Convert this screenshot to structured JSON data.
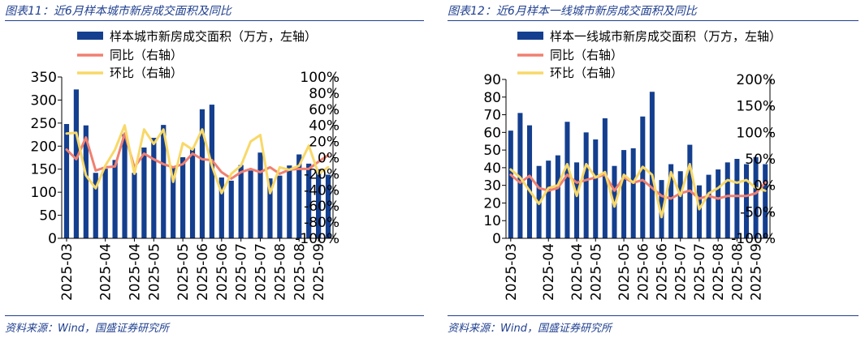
{
  "charts": [
    {
      "title": "图表11：近6月样本城市新房成交面积及同比",
      "source": "资料来源：Wind，国盛证券研究所",
      "chart_data": {
        "type": "bar+line",
        "categories": [
          "2025-03",
          "2025-03",
          "2025-03",
          "2025-03",
          "2025-04",
          "2025-04",
          "2025-04",
          "2025-04",
          "2025-05",
          "2025-05",
          "2025-05",
          "2025-05",
          "2025-05",
          "2025-06",
          "2025-06",
          "2025-06",
          "2025-06",
          "2025-07",
          "2025-07",
          "2025-07",
          "2025-07",
          "2025-08",
          "2025-08",
          "2025-08",
          "2025-08",
          "2025-09",
          "2025-09",
          "2025-09"
        ],
        "x_tick_labels": [
          "2025-03",
          "2025-04",
          "2025-04",
          "2025-05",
          "2025-05",
          "2025-06",
          "2025-06",
          "2025-07",
          "2025-07",
          "2025-08",
          "2025-08",
          "2025-09"
        ],
        "x_tick_index": [
          0,
          4,
          7,
          9,
          12,
          14,
          16,
          18,
          20,
          22,
          24,
          26
        ],
        "series": [
          {
            "name": "样本城市新房成交面积（万方，左轴）",
            "kind": "bar",
            "axis": "left",
            "values": [
              248,
              323,
              245,
              142,
              151,
              170,
              226,
              142,
              197,
              218,
              246,
              154,
              176,
              196,
              280,
              290,
              132,
              125,
              159,
              147,
              186,
              130,
              136,
              158,
              182,
              162,
              150,
              138
            ]
          },
          {
            "name": "同比（右轴）",
            "kind": "line",
            "axis": "right",
            "values": [
              10,
              -2,
              25,
              -16,
              -12,
              -11,
              30,
              -12,
              5,
              -2,
              -8,
              -12,
              -8,
              5,
              -2,
              -3,
              -18,
              -26,
              -18,
              -14,
              -18,
              -12,
              -20,
              -15,
              -14,
              -14,
              -5,
              3
            ]
          },
          {
            "name": "环比（右轴）",
            "kind": "line",
            "axis": "right",
            "values": [
              30,
              31,
              -22,
              -38,
              -10,
              10,
              40,
              -20,
              35,
              17,
              35,
              -30,
              18,
              10,
              35,
              -10,
              -44,
              -20,
              -10,
              20,
              28,
              -44,
              -12,
              -15,
              -10,
              15,
              -20,
              -12
            ]
          }
        ],
        "y_left": {
          "min": 0,
          "max": 350,
          "ticks": [
            "0",
            "50",
            "100",
            "150",
            "200",
            "250",
            "300",
            "350"
          ]
        },
        "y_right": {
          "min": -100,
          "max": 100,
          "ticks": [
            "-100%",
            "-80%",
            "-60%",
            "-40%",
            "-20%",
            "0%",
            "20%",
            "40%",
            "60%",
            "80%",
            "100%"
          ]
        },
        "colors": {
          "bar": "#143f8f",
          "yoy": "#f08070",
          "mom": "#f8d868"
        },
        "legend": "top-left",
        "grid": false
      }
    },
    {
      "title": "图表12：近6月样本一线城市新房成交面积及同比",
      "source": "资料来源：Wind，国盛证券研究所",
      "chart_data": {
        "type": "bar+line",
        "categories": [
          "2025-03",
          "2025-03",
          "2025-03",
          "2025-03",
          "2025-04",
          "2025-04",
          "2025-04",
          "2025-04",
          "2025-05",
          "2025-05",
          "2025-05",
          "2025-05",
          "2025-05",
          "2025-06",
          "2025-06",
          "2025-06",
          "2025-06",
          "2025-07",
          "2025-07",
          "2025-07",
          "2025-07",
          "2025-08",
          "2025-08",
          "2025-08",
          "2025-08",
          "2025-09",
          "2025-09",
          "2025-09"
        ],
        "x_tick_labels": [
          "2025-03",
          "2025-04",
          "2025-04",
          "2025-05",
          "2025-05",
          "2025-06",
          "2025-06",
          "2025-07",
          "2025-07",
          "2025-08",
          "2025-08",
          "2025-09"
        ],
        "x_tick_index": [
          0,
          4,
          7,
          9,
          12,
          14,
          16,
          18,
          20,
          22,
          24,
          26
        ],
        "series": [
          {
            "name": "样本一线城市新房成交面积（万方，左轴）",
            "kind": "bar",
            "axis": "left",
            "values": [
              61,
              71,
              64,
              41,
              44,
              47,
              66,
              43,
              60,
              56,
              68,
              41,
              50,
              51,
              69,
              83,
              33,
              42,
              38,
              53,
              30,
              36,
              39,
              43,
              45,
              42,
              46,
              42
            ]
          },
          {
            "name": "同比（右轴）",
            "kind": "line",
            "axis": "right",
            "values": [
              20,
              5,
              18,
              -5,
              -10,
              -5,
              20,
              5,
              10,
              15,
              20,
              -10,
              15,
              5,
              10,
              -5,
              -20,
              -25,
              -15,
              -10,
              -25,
              -20,
              -25,
              -20,
              -20,
              -20,
              -15,
              5
            ]
          },
          {
            "name": "环比（右轴）",
            "kind": "line",
            "axis": "right",
            "values": [
              30,
              15,
              -10,
              -35,
              -5,
              0,
              40,
              -20,
              40,
              15,
              25,
              -40,
              20,
              5,
              35,
              20,
              -60,
              25,
              -20,
              40,
              -45,
              -15,
              -5,
              10,
              5,
              10,
              -5,
              -10
            ]
          }
        ],
        "y_left": {
          "min": 0,
          "max": 90,
          "ticks": [
            "0",
            "10",
            "20",
            "30",
            "40",
            "50",
            "60",
            "70",
            "80",
            "90"
          ]
        },
        "y_right": {
          "min": -100,
          "max": 200,
          "ticks": [
            "-100%",
            "-50%",
            "0%",
            "50%",
            "100%",
            "150%",
            "200%"
          ]
        },
        "colors": {
          "bar": "#143f8f",
          "yoy": "#f08070",
          "mom": "#f8d868"
        },
        "legend": "top-left",
        "grid": false
      }
    }
  ]
}
